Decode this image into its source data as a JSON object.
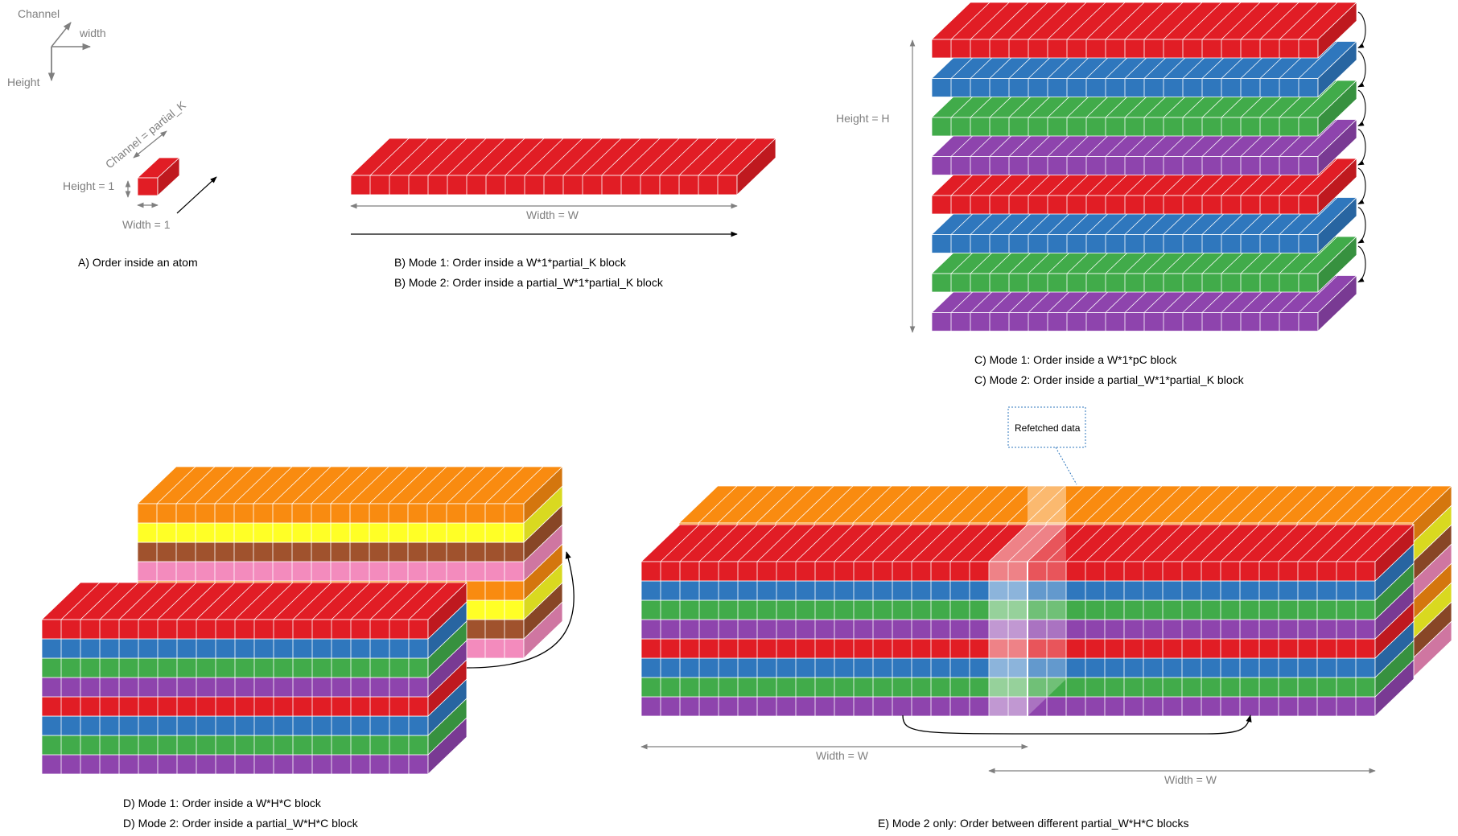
{
  "axes": {
    "channel": "Channel",
    "width": "width",
    "height": "Height"
  },
  "atom": {
    "channel_label": "Channel = partial_K",
    "height_label": "Height = 1",
    "width_label": "Width = 1",
    "caption": "A) Order inside an atom"
  },
  "block_b": {
    "width_label": "Width = W",
    "caption1": "B) Mode 1: Order inside a W*1*partial_K block",
    "caption2": "B) Mode 2: Order inside a partial_W*1*partial_K block"
  },
  "block_c": {
    "height_label": "Height = H",
    "caption1": "C) Mode 1: Order inside a W*1*pC block",
    "caption2": "C) Mode 2: Order inside a partial_W*1*partial_K block"
  },
  "block_d": {
    "caption1": "D) Mode 1: Order inside a W*H*C block",
    "caption2": "D) Mode 2: Order inside a partial_W*H*C block"
  },
  "block_e": {
    "callout": "Refetched data",
    "width_label_1": "Width = W",
    "width_label_2": "Width = W",
    "caption": "E) Mode 2 only: Order between different partial_W*H*C blocks"
  },
  "colors": {
    "red": "#e11d25",
    "blue": "#2f77bd",
    "green": "#41ab4a",
    "purple": "#8e44ad",
    "orange": "#f98b10",
    "yellow": "#ffff26",
    "brown": "#a0522d",
    "pink": "#f38bbd",
    "label_gray": "#7f7f7f"
  }
}
